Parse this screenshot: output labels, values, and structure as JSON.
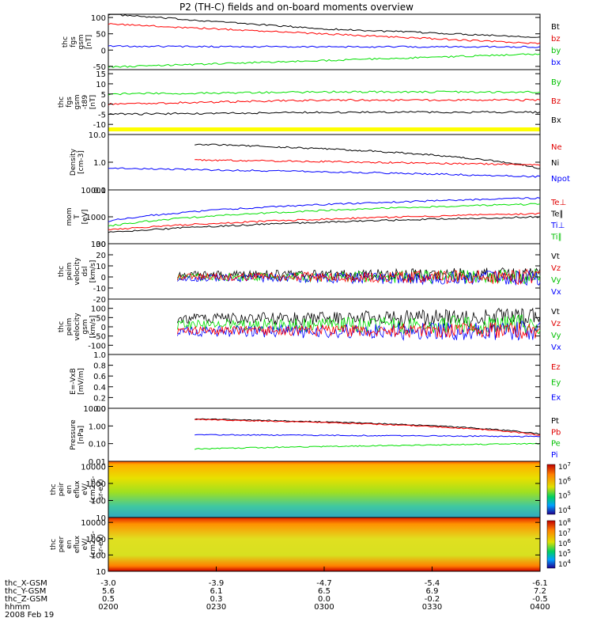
{
  "title": "P2 (TH-C) fields and on-board moments overview",
  "colors": {
    "black": "#000000",
    "red": "#ff0000",
    "green": "#00e000",
    "blue": "#0000ff",
    "yellow": "#ffff00"
  },
  "chart_data": [
    {
      "id": "fgs_gsm",
      "type": "line",
      "ylabel": [
        "thc",
        "fgs",
        "gsm",
        "[nT]"
      ],
      "yticks": [
        "100",
        "50",
        "0",
        "-50"
      ],
      "ylim": [
        -60,
        110
      ],
      "legend": [
        "Bt",
        "bz",
        "by",
        "bx"
      ],
      "series": [
        {
          "name": "Bt",
          "color": "#000000",
          "x": [
            0,
            0.5,
            1
          ],
          "y": [
            110,
            65,
            40
          ]
        },
        {
          "name": "bz",
          "color": "#ff0000",
          "x": [
            0,
            0.5,
            1
          ],
          "y": [
            80,
            50,
            20
          ]
        },
        {
          "name": "by",
          "color": "#00e000",
          "x": [
            0,
            0.5,
            1
          ],
          "y": [
            -52,
            -32,
            -12
          ]
        },
        {
          "name": "bx",
          "color": "#0000ff",
          "x": [
            0,
            0.5,
            1
          ],
          "y": [
            12,
            10,
            10
          ]
        }
      ]
    },
    {
      "id": "fgs_gsm_model",
      "type": "line",
      "ylabel": [
        "thc",
        "fgs",
        "gsm",
        "-t89",
        "[nT]"
      ],
      "yticks": [
        "15",
        "10",
        "5",
        "0",
        "-5",
        "-10"
      ],
      "ylim": [
        -15,
        17
      ],
      "legend": [
        "By",
        "Bz",
        "Bx"
      ],
      "series": [
        {
          "name": "By",
          "color": "#00e000",
          "x": [
            0,
            0.5,
            1
          ],
          "y": [
            5,
            6,
            6
          ]
        },
        {
          "name": "Bz",
          "color": "#ff0000",
          "x": [
            0,
            0.5,
            1
          ],
          "y": [
            0,
            2,
            2
          ]
        },
        {
          "name": "Bx",
          "color": "#000000",
          "x": [
            0,
            0.5,
            1
          ],
          "y": [
            -5,
            -4,
            -4
          ]
        }
      ]
    },
    {
      "id": "density",
      "type": "line",
      "ylabel": [
        "Density",
        "[cm-3]"
      ],
      "yticks": [
        "10.0",
        "1.0",
        "0.1"
      ],
      "ylog": true,
      "ylim": [
        0.1,
        10
      ],
      "legend": [
        "Ne",
        "Ni",
        "Npot"
      ],
      "series": [
        {
          "name": "Ne",
          "color": "#000000",
          "x": [
            0.2,
            1
          ],
          "y": [
            4.5,
            0.6
          ]
        },
        {
          "name": "Ni",
          "color": "#ff0000",
          "x": [
            0.2,
            1
          ],
          "y": [
            1.2,
            0.8
          ]
        },
        {
          "name": "Npot",
          "color": "#0000ff",
          "x": [
            0,
            1
          ],
          "y": [
            0.6,
            0.3
          ]
        }
      ]
    },
    {
      "id": "mom_temp",
      "type": "line",
      "ylabel": [
        "mom",
        "T",
        "[eV]"
      ],
      "yticks": [
        "10000",
        "1000",
        "100"
      ],
      "ylog": true,
      "ylim": [
        100,
        10000
      ],
      "legend": [
        "Te⊥",
        "Te∥",
        "Ti⊥",
        "Ti∥"
      ],
      "series": [
        {
          "name": "Ti⊥",
          "color": "#0000ff",
          "x": [
            0,
            1
          ],
          "y": [
            700,
            5000
          ]
        },
        {
          "name": "Ti∥",
          "color": "#00e000",
          "x": [
            0,
            1
          ],
          "y": [
            450,
            3000
          ]
        },
        {
          "name": "Te⊥",
          "color": "#ff0000",
          "x": [
            0,
            1
          ],
          "y": [
            330,
            1300
          ]
        },
        {
          "name": "Te∥",
          "color": "#000000",
          "x": [
            0,
            1
          ],
          "y": [
            260,
            1000
          ]
        }
      ]
    },
    {
      "id": "peim_vel_dsl",
      "type": "line",
      "ylabel": [
        "thc",
        "peim",
        "velocity",
        "dsl",
        "[km/s]"
      ],
      "yticks": [
        "30",
        "20",
        "10",
        "0",
        "-10",
        "-20"
      ],
      "ylim": [
        -20,
        30
      ],
      "legend": [
        "Vt",
        "Vz",
        "Vy",
        "Vx"
      ],
      "series": []
    },
    {
      "id": "peim_vel_gsm",
      "type": "line",
      "ylabel": [
        "thc",
        "peim",
        "velocity",
        "gsm",
        "[km/s]"
      ],
      "yticks": [
        "100",
        "50",
        "0",
        "-50",
        "-100"
      ],
      "ylim": [
        -150,
        150
      ],
      "legend": [
        "Vt",
        "Vz",
        "Vy",
        "Vx"
      ],
      "series": []
    },
    {
      "id": "efield",
      "type": "line",
      "ylabel": [
        "E=-VxB",
        "[mV/m]"
      ],
      "yticks": [
        "1.0",
        "0.8",
        "0.6",
        "0.4",
        "0.2",
        "0.0"
      ],
      "ylim": [
        0,
        1
      ],
      "legend": [
        "Ez",
        "Ey",
        "Ex"
      ],
      "series": []
    },
    {
      "id": "pressure",
      "type": "line",
      "ylabel": [
        "Pressure",
        "[nPa]"
      ],
      "yticks": [
        "10.00",
        "1.00",
        "0.10",
        "0.01"
      ],
      "ylog": true,
      "ylim": [
        0.01,
        10
      ],
      "legend": [
        "Pt",
        "Pb",
        "Pe",
        "Pi"
      ],
      "series": [
        {
          "name": "Pt",
          "color": "#000000",
          "x": [
            0.2,
            1
          ],
          "y": [
            2.5,
            0.35
          ]
        },
        {
          "name": "Pb",
          "color": "#ff0000",
          "x": [
            0.2,
            1
          ],
          "y": [
            2.3,
            0.3
          ]
        },
        {
          "name": "Pe",
          "color": "#0000ff",
          "x": [
            0.2,
            1
          ],
          "y": [
            0.32,
            0.25
          ]
        },
        {
          "name": "Pi",
          "color": "#00e000",
          "x": [
            0.2,
            1
          ],
          "y": [
            0.05,
            0.1
          ]
        }
      ]
    },
    {
      "id": "peir_spec",
      "type": "heatmap",
      "ylabel": [
        "thc",
        "peir",
        "en",
        "eflux",
        "eV/",
        "(cm2-s-",
        "sr-eV)"
      ],
      "yticks": [
        "10000",
        "1000",
        "100",
        "10"
      ],
      "ylog": true,
      "ylim": [
        10,
        20000
      ],
      "colorbar": {
        "labels": [
          "10^7",
          "10^6",
          "10^5",
          "10^4"
        ]
      }
    },
    {
      "id": "peer_spec",
      "type": "heatmap",
      "ylabel": [
        "thc",
        "peer",
        "en",
        "eflux",
        "eV/",
        "(cm2-s-",
        "sr-eV)"
      ],
      "yticks": [
        "10000",
        "1000",
        "100",
        "10"
      ],
      "ylog": true,
      "ylim": [
        10,
        20000
      ],
      "colorbar": {
        "labels": [
          "10^8",
          "10^7",
          "10^6",
          "10^5",
          "10^4"
        ]
      }
    }
  ],
  "xaxis": {
    "rows": [
      {
        "label": "thc_X-GSM",
        "values": [
          "-3.0",
          "-3.9",
          "-4.7",
          "-5.4",
          "-6.1"
        ]
      },
      {
        "label": "thc_Y-GSM",
        "values": [
          "5.6",
          "6.1",
          "6.5",
          "6.9",
          "7.2"
        ]
      },
      {
        "label": "thc_Z-GSM",
        "values": [
          "0.5",
          "0.3",
          "0.0",
          "-0.2",
          "-0.5"
        ]
      },
      {
        "label": "hhmm",
        "values": [
          "0200",
          "0230",
          "0300",
          "0330",
          "0400"
        ]
      }
    ],
    "date": "2008 Feb 19"
  }
}
